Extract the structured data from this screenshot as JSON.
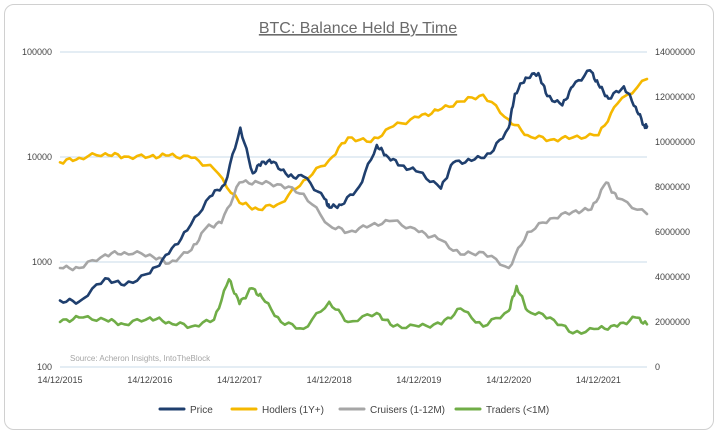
{
  "chart_data": {
    "type": "line",
    "title": "BTC: Balance Held By Time",
    "source": "Source: Acheron Insights, IntoTheBlock",
    "x_ticks": [
      "14/12/2015",
      "14/12/2016",
      "14/12/2017",
      "14/12/2018",
      "14/12/2019",
      "14/12/2020",
      "14/12/2021"
    ],
    "x_range": [
      "2015-12-14",
      "2022-06-30"
    ],
    "y_left": {
      "scale": "log",
      "ticks": [
        "100",
        "1000",
        "10000",
        "100000"
      ],
      "range": [
        100,
        100000
      ]
    },
    "y_right": {
      "scale": "linear",
      "ticks": [
        "0",
        "2000000",
        "4000000",
        "6000000",
        "8000000",
        "10000000",
        "12000000",
        "14000000"
      ],
      "range": [
        0,
        14000000
      ]
    },
    "grid": "horizontal",
    "legend_position": "bottom",
    "series": [
      {
        "name": "Price",
        "color": "#1f3f6e",
        "axis": "left",
        "x": [
          "2015-12-14",
          "2016-03-01",
          "2016-06-15",
          "2016-09-01",
          "2016-12-14",
          "2017-03-01",
          "2017-05-15",
          "2017-08-15",
          "2017-10-15",
          "2017-12-17",
          "2018-02-06",
          "2018-03-15",
          "2018-05-01",
          "2018-07-01",
          "2018-09-01",
          "2018-11-25",
          "2018-12-15",
          "2019-02-01",
          "2019-04-15",
          "2019-06-26",
          "2019-08-01",
          "2019-10-01",
          "2019-12-15",
          "2020-03-13",
          "2020-05-01",
          "2020-07-15",
          "2020-10-01",
          "2020-12-14",
          "2021-01-08",
          "2021-02-21",
          "2021-04-14",
          "2021-05-20",
          "2021-07-20",
          "2021-09-01",
          "2021-11-10",
          "2021-12-14",
          "2022-01-24",
          "2022-03-28",
          "2022-05-15",
          "2022-06-18",
          "2022-06-30"
        ],
        "values": [
          430,
          420,
          700,
          600,
          780,
          1200,
          2000,
          4200,
          5500,
          19000,
          7000,
          9000,
          9000,
          6500,
          6500,
          4000,
          3300,
          3500,
          5200,
          13000,
          10500,
          8300,
          7200,
          5000,
          8800,
          9200,
          10800,
          19000,
          40000,
          57000,
          63000,
          38000,
          31000,
          47000,
          67000,
          49000,
          36000,
          47000,
          30000,
          20000,
          19500
        ]
      },
      {
        "name": "Hodlers (1Y+)",
        "color": "#f5b800",
        "axis": "right",
        "x": [
          "2015-12-14",
          "2016-03-01",
          "2016-06-15",
          "2016-09-01",
          "2016-12-14",
          "2017-03-01",
          "2017-06-01",
          "2017-09-01",
          "2017-12-14",
          "2018-03-01",
          "2018-06-01",
          "2018-09-01",
          "2018-12-14",
          "2019-03-01",
          "2019-06-01",
          "2019-09-01",
          "2019-12-14",
          "2020-03-01",
          "2020-06-01",
          "2020-09-01",
          "2020-12-14",
          "2021-03-01",
          "2021-06-01",
          "2021-09-01",
          "2021-12-14",
          "2022-03-01",
          "2022-06-30"
        ],
        "values": [
          9100000,
          9300000,
          9500000,
          9350000,
          9350000,
          9400000,
          9300000,
          8800000,
          7300000,
          7000000,
          7300000,
          8300000,
          9200000,
          10200000,
          10000000,
          10700000,
          11100000,
          11400000,
          11800000,
          12100000,
          11000000,
          10300000,
          10100000,
          10200000,
          10300000,
          11700000,
          12800000
        ]
      },
      {
        "name": "Cruisers (1-12M)",
        "color": "#a6a6a6",
        "axis": "right",
        "x": [
          "2015-12-14",
          "2016-03-01",
          "2016-06-15",
          "2016-09-01",
          "2016-12-14",
          "2017-03-01",
          "2017-06-01",
          "2017-08-01",
          "2017-10-01",
          "2017-12-14",
          "2018-03-01",
          "2018-06-01",
          "2018-09-01",
          "2018-12-14",
          "2019-03-01",
          "2019-06-01",
          "2019-09-01",
          "2019-12-14",
          "2020-03-01",
          "2020-06-01",
          "2020-09-01",
          "2020-12-14",
          "2021-03-01",
          "2021-06-01",
          "2021-09-01",
          "2021-11-15",
          "2022-01-15",
          "2022-03-01",
          "2022-06-30"
        ],
        "values": [
          4400000,
          4400000,
          5000000,
          5100000,
          5000000,
          4600000,
          5200000,
          6200000,
          6400000,
          8200000,
          8200000,
          8100000,
          7700000,
          6300000,
          6000000,
          6300000,
          6500000,
          6000000,
          5700000,
          5000000,
          5100000,
          4400000,
          6000000,
          6600000,
          6900000,
          7000000,
          8200000,
          7500000,
          6800000
        ]
      },
      {
        "name": "Traders (<1M)",
        "color": "#70ad47",
        "axis": "right",
        "x": [
          "2015-12-14",
          "2016-03-01",
          "2016-06-15",
          "2016-09-01",
          "2016-12-14",
          "2017-03-01",
          "2017-06-01",
          "2017-09-01",
          "2017-11-01",
          "2017-12-14",
          "2018-02-01",
          "2018-03-15",
          "2018-06-01",
          "2018-09-01",
          "2018-12-14",
          "2019-03-01",
          "2019-06-26",
          "2019-09-01",
          "2019-12-14",
          "2020-03-15",
          "2020-06-01",
          "2020-09-01",
          "2020-12-14",
          "2021-01-15",
          "2021-03-01",
          "2021-06-01",
          "2021-09-01",
          "2021-12-14",
          "2022-03-01",
          "2022-05-15",
          "2022-06-30"
        ],
        "values": [
          2000000,
          2200000,
          2100000,
          1900000,
          2200000,
          2000000,
          1800000,
          2100000,
          3900000,
          2800000,
          3500000,
          3100000,
          2000000,
          1700000,
          2900000,
          2000000,
          2400000,
          1800000,
          1800000,
          1900000,
          2600000,
          1800000,
          2500000,
          3600000,
          2500000,
          2200000,
          1500000,
          1700000,
          1800000,
          2200000,
          1900000
        ]
      }
    ]
  }
}
